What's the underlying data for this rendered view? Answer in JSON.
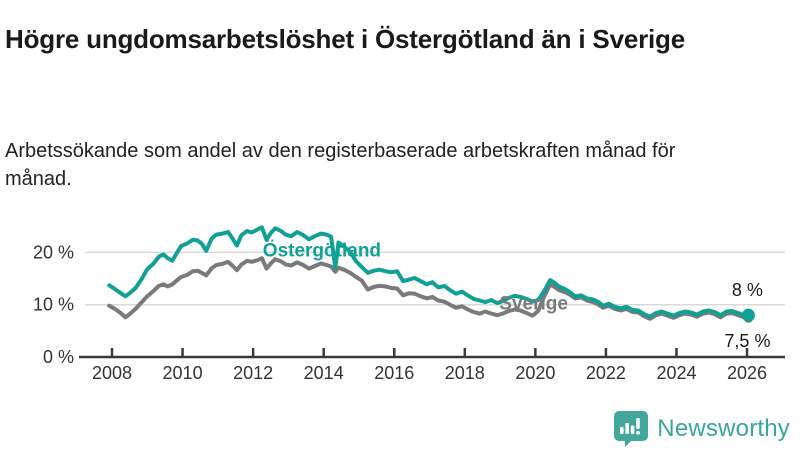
{
  "header": {
    "title": "Högre ungdomsarbetslöshet i Östergötland än i Sverige",
    "subtitle": "Arbetssökande som andel av den registerbaserade arbetskraften månad för månad."
  },
  "branding": {
    "name": "Newsworthy",
    "icon": "newsworthy-speech-bubble-bar-chart-icon",
    "text_color": "#3aa59c",
    "icon_color": "#43a79e"
  },
  "chart_data": {
    "type": "line",
    "title": "Högre ungdomsarbetslöshet i Östergötland än i Sverige",
    "xlabel": "",
    "ylabel": "Arbetssökande som andel av den registerbaserade arbetskraften",
    "unit": "%",
    "xlim": [
      2007.8,
      2026.3
    ],
    "ylim": [
      0,
      27
    ],
    "grid": "horizontal",
    "x_ticks": [
      2008,
      2010,
      2012,
      2014,
      2016,
      2018,
      2020,
      2022,
      2024,
      2026
    ],
    "x_tick_labels": [
      "2008",
      "2010",
      "2012",
      "2014",
      "2016",
      "2018",
      "2020",
      "2022",
      "2024",
      "2026"
    ],
    "y_ticks": [
      0,
      10,
      20
    ],
    "y_tick_labels": [
      "0 %",
      "10 %",
      "20 %"
    ],
    "axis_color": "#3a3a3a",
    "grid_color": "#d9d9d9",
    "tick_label_color": "#333333",
    "series": [
      {
        "name": "Sverige",
        "color": "#7a7a7a",
        "label": {
          "text": "Sverige",
          "x": 2019.95,
          "y": 10.4
        },
        "end_dot": true,
        "points": [
          [
            2007.92,
            9.8
          ],
          [
            2008.08,
            9.2
          ],
          [
            2008.25,
            8.4
          ],
          [
            2008.38,
            7.6
          ],
          [
            2008.5,
            8.2
          ],
          [
            2008.67,
            9.2
          ],
          [
            2008.83,
            10.4
          ],
          [
            2009.0,
            11.6
          ],
          [
            2009.17,
            12.6
          ],
          [
            2009.33,
            13.6
          ],
          [
            2009.46,
            13.9
          ],
          [
            2009.58,
            13.5
          ],
          [
            2009.71,
            13.9
          ],
          [
            2009.83,
            14.6
          ],
          [
            2009.96,
            15.3
          ],
          [
            2010.13,
            15.7
          ],
          [
            2010.29,
            16.4
          ],
          [
            2010.42,
            16.5
          ],
          [
            2010.54,
            16.1
          ],
          [
            2010.67,
            15.6
          ],
          [
            2010.83,
            17.0
          ],
          [
            2010.96,
            17.6
          ],
          [
            2011.13,
            17.8
          ],
          [
            2011.29,
            18.2
          ],
          [
            2011.42,
            17.4
          ],
          [
            2011.54,
            16.6
          ],
          [
            2011.67,
            17.7
          ],
          [
            2011.83,
            18.4
          ],
          [
            2011.96,
            18.2
          ],
          [
            2012.13,
            18.5
          ],
          [
            2012.25,
            18.9
          ],
          [
            2012.38,
            16.9
          ],
          [
            2012.5,
            17.9
          ],
          [
            2012.63,
            18.7
          ],
          [
            2012.79,
            18.3
          ],
          [
            2012.92,
            17.7
          ],
          [
            2013.08,
            17.5
          ],
          [
            2013.25,
            18.1
          ],
          [
            2013.42,
            17.6
          ],
          [
            2013.58,
            16.9
          ],
          [
            2013.75,
            17.4
          ],
          [
            2013.92,
            17.9
          ],
          [
            2014.08,
            17.6
          ],
          [
            2014.21,
            17.3
          ],
          [
            2014.33,
            16.3
          ],
          [
            2014.42,
            17.1
          ],
          [
            2014.58,
            16.7
          ],
          [
            2014.75,
            16.1
          ],
          [
            2014.92,
            15.3
          ],
          [
            2015.08,
            14.6
          ],
          [
            2015.25,
            12.9
          ],
          [
            2015.42,
            13.4
          ],
          [
            2015.58,
            13.6
          ],
          [
            2015.75,
            13.5
          ],
          [
            2015.92,
            13.2
          ],
          [
            2016.08,
            13.1
          ],
          [
            2016.25,
            11.8
          ],
          [
            2016.42,
            12.2
          ],
          [
            2016.58,
            12.1
          ],
          [
            2016.75,
            11.6
          ],
          [
            2016.92,
            11.2
          ],
          [
            2017.08,
            11.5
          ],
          [
            2017.25,
            10.8
          ],
          [
            2017.42,
            10.6
          ],
          [
            2017.58,
            10.0
          ],
          [
            2017.75,
            9.4
          ],
          [
            2017.92,
            9.7
          ],
          [
            2018.08,
            9.1
          ],
          [
            2018.25,
            8.6
          ],
          [
            2018.42,
            8.3
          ],
          [
            2018.58,
            8.7
          ],
          [
            2018.75,
            8.3
          ],
          [
            2018.92,
            8.0
          ],
          [
            2019.08,
            8.3
          ],
          [
            2019.25,
            8.8
          ],
          [
            2019.42,
            9.1
          ],
          [
            2019.58,
            8.9
          ],
          [
            2019.75,
            8.4
          ],
          [
            2019.92,
            7.9
          ],
          [
            2020.08,
            8.8
          ],
          [
            2020.25,
            11.6
          ],
          [
            2020.42,
            13.9
          ],
          [
            2020.54,
            13.4
          ],
          [
            2020.67,
            12.8
          ],
          [
            2020.83,
            12.4
          ],
          [
            2020.96,
            12.0
          ],
          [
            2021.13,
            11.2
          ],
          [
            2021.29,
            11.4
          ],
          [
            2021.46,
            10.8
          ],
          [
            2021.63,
            10.5
          ],
          [
            2021.79,
            10.0
          ],
          [
            2021.92,
            9.4
          ],
          [
            2022.08,
            9.8
          ],
          [
            2022.25,
            9.2
          ],
          [
            2022.42,
            8.9
          ],
          [
            2022.58,
            9.2
          ],
          [
            2022.75,
            8.6
          ],
          [
            2022.92,
            8.5
          ],
          [
            2023.08,
            7.8
          ],
          [
            2023.25,
            7.3
          ],
          [
            2023.42,
            8.0
          ],
          [
            2023.58,
            8.3
          ],
          [
            2023.75,
            7.9
          ],
          [
            2023.92,
            7.5
          ],
          [
            2024.08,
            8.0
          ],
          [
            2024.25,
            8.3
          ],
          [
            2024.42,
            8.1
          ],
          [
            2024.58,
            7.7
          ],
          [
            2024.75,
            8.3
          ],
          [
            2024.92,
            8.5
          ],
          [
            2025.08,
            8.2
          ],
          [
            2025.25,
            7.6
          ],
          [
            2025.42,
            8.3
          ],
          [
            2025.58,
            8.4
          ],
          [
            2025.75,
            8.0
          ],
          [
            2025.92,
            7.6
          ],
          [
            2026.04,
            7.5
          ]
        ]
      },
      {
        "name": "Östergötland",
        "color": "#10a095",
        "label": {
          "text": "Östergötland",
          "x": 2013.95,
          "y": 20.6
        },
        "end_dot": true,
        "points": [
          [
            2007.92,
            13.7
          ],
          [
            2008.08,
            13.0
          ],
          [
            2008.25,
            12.2
          ],
          [
            2008.38,
            11.6
          ],
          [
            2008.5,
            12.2
          ],
          [
            2008.67,
            13.2
          ],
          [
            2008.83,
            14.8
          ],
          [
            2009.0,
            16.8
          ],
          [
            2009.17,
            17.8
          ],
          [
            2009.33,
            19.2
          ],
          [
            2009.46,
            19.6
          ],
          [
            2009.58,
            18.9
          ],
          [
            2009.71,
            18.4
          ],
          [
            2009.83,
            19.8
          ],
          [
            2009.96,
            21.2
          ],
          [
            2010.13,
            21.7
          ],
          [
            2010.29,
            22.4
          ],
          [
            2010.42,
            22.3
          ],
          [
            2010.54,
            21.7
          ],
          [
            2010.67,
            20.3
          ],
          [
            2010.83,
            22.7
          ],
          [
            2010.96,
            23.4
          ],
          [
            2011.13,
            23.6
          ],
          [
            2011.29,
            23.9
          ],
          [
            2011.42,
            22.6
          ],
          [
            2011.54,
            21.3
          ],
          [
            2011.67,
            23.3
          ],
          [
            2011.83,
            24.1
          ],
          [
            2011.96,
            23.8
          ],
          [
            2012.13,
            24.4
          ],
          [
            2012.25,
            24.8
          ],
          [
            2012.38,
            22.4
          ],
          [
            2012.5,
            23.7
          ],
          [
            2012.63,
            24.6
          ],
          [
            2012.79,
            24.1
          ],
          [
            2012.92,
            23.4
          ],
          [
            2013.08,
            23.1
          ],
          [
            2013.25,
            23.9
          ],
          [
            2013.42,
            23.3
          ],
          [
            2013.58,
            22.5
          ],
          [
            2013.75,
            23.1
          ],
          [
            2013.92,
            23.6
          ],
          [
            2014.08,
            23.4
          ],
          [
            2014.21,
            23.0
          ],
          [
            2014.33,
            17.1
          ],
          [
            2014.42,
            21.9
          ],
          [
            2014.58,
            21.1
          ],
          [
            2014.75,
            20.1
          ],
          [
            2014.92,
            18.3
          ],
          [
            2015.08,
            17.2
          ],
          [
            2015.25,
            16.1
          ],
          [
            2015.42,
            16.5
          ],
          [
            2015.58,
            16.7
          ],
          [
            2015.75,
            16.4
          ],
          [
            2015.92,
            16.2
          ],
          [
            2016.08,
            16.4
          ],
          [
            2016.25,
            14.5
          ],
          [
            2016.42,
            14.8
          ],
          [
            2016.58,
            15.1
          ],
          [
            2016.75,
            14.5
          ],
          [
            2016.92,
            13.9
          ],
          [
            2017.08,
            14.3
          ],
          [
            2017.25,
            13.3
          ],
          [
            2017.42,
            13.6
          ],
          [
            2017.58,
            12.8
          ],
          [
            2017.75,
            12.1
          ],
          [
            2017.92,
            12.5
          ],
          [
            2018.08,
            11.8
          ],
          [
            2018.25,
            11.1
          ],
          [
            2018.42,
            10.8
          ],
          [
            2018.58,
            10.5
          ],
          [
            2018.75,
            10.9
          ],
          [
            2018.92,
            10.3
          ],
          [
            2019.08,
            10.7
          ],
          [
            2019.25,
            11.3
          ],
          [
            2019.42,
            11.7
          ],
          [
            2019.58,
            11.5
          ],
          [
            2019.75,
            11.1
          ],
          [
            2019.92,
            10.6
          ],
          [
            2020.08,
            10.9
          ],
          [
            2020.25,
            12.6
          ],
          [
            2020.42,
            14.7
          ],
          [
            2020.54,
            14.2
          ],
          [
            2020.67,
            13.5
          ],
          [
            2020.83,
            13.0
          ],
          [
            2020.96,
            12.5
          ],
          [
            2021.13,
            11.6
          ],
          [
            2021.29,
            11.8
          ],
          [
            2021.46,
            11.2
          ],
          [
            2021.63,
            11.0
          ],
          [
            2021.79,
            10.5
          ],
          [
            2021.92,
            9.8
          ],
          [
            2022.08,
            10.2
          ],
          [
            2022.25,
            9.6
          ],
          [
            2022.42,
            9.3
          ],
          [
            2022.58,
            9.6
          ],
          [
            2022.75,
            9.0
          ],
          [
            2022.92,
            8.9
          ],
          [
            2023.08,
            8.2
          ],
          [
            2023.25,
            7.7
          ],
          [
            2023.42,
            8.4
          ],
          [
            2023.58,
            8.7
          ],
          [
            2023.75,
            8.3
          ],
          [
            2023.92,
            7.9
          ],
          [
            2024.08,
            8.4
          ],
          [
            2024.25,
            8.7
          ],
          [
            2024.42,
            8.5
          ],
          [
            2024.58,
            8.1
          ],
          [
            2024.75,
            8.7
          ],
          [
            2024.92,
            8.9
          ],
          [
            2025.08,
            8.6
          ],
          [
            2025.25,
            8.0
          ],
          [
            2025.42,
            8.7
          ],
          [
            2025.58,
            8.8
          ],
          [
            2025.75,
            8.4
          ],
          [
            2025.92,
            8.0
          ],
          [
            2026.04,
            8.0
          ]
        ]
      }
    ],
    "end_labels": [
      {
        "text": "8 %",
        "series": "Östergötland",
        "position": "above",
        "color": "#1a1a1a"
      },
      {
        "text": "7,5 %",
        "series": "Sverige",
        "position": "below",
        "color": "#1a1a1a"
      }
    ]
  }
}
